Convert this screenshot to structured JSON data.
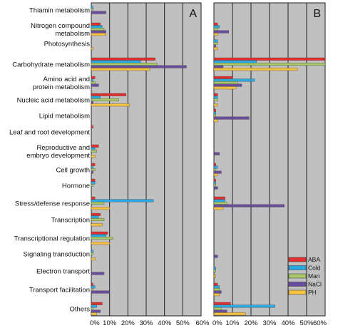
{
  "chart_data": {
    "type": "bar",
    "orientation": "horizontal",
    "categories": [
      "Thiamin metabolism",
      "Nitrogen compound metabolism",
      "Photosynthesis",
      "Carbohydrate metabolism",
      "Amino acid and protein metabolism",
      "Nucleic acid metabolism",
      "Lipid metabolism",
      "Leaf and root development",
      "Reproductive and embryo development",
      "Cell growth",
      "Hormone",
      "Stress/defense response",
      "Transcription",
      "Transcriptional regulation",
      "Signaling transduction",
      "Electron transport",
      "Transport facilitation",
      "Others"
    ],
    "category_display": [
      [
        "Thiamin metabolism"
      ],
      [
        "Nitrogen compound",
        "metabolism"
      ],
      [
        "Photosynthesis"
      ],
      [
        "Carbohydrate metabolism"
      ],
      [
        "Amino acid and",
        "protein metabolism"
      ],
      [
        "Nucleic acid metabolism"
      ],
      [
        "Lipid metabolism"
      ],
      [
        "Leaf and root development"
      ],
      [
        "Reproductive and",
        "embryo development"
      ],
      [
        "Cell growth"
      ],
      [
        "Hormone"
      ],
      [
        "Stress/defense response"
      ],
      [
        "Transcription"
      ],
      [
        "Transcriptional regulation"
      ],
      [
        "Signaling transduction"
      ],
      [
        "Electron transport"
      ],
      [
        "Transport facilitation"
      ],
      [
        "Others"
      ]
    ],
    "xlim": [
      0,
      60
    ],
    "xticks": [
      "0%",
      "10%",
      "20%",
      "30%",
      "40%",
      "50%",
      "60%"
    ],
    "grid": true,
    "legend_position": "bottom-right of panel B",
    "legend": [
      "ABA",
      "Cold",
      "Man",
      "NaCl",
      "PH"
    ],
    "colors": {
      "ABA": "#e03030",
      "Cold": "#2aa9e0",
      "Man": "#a8c86a",
      "NaCl": "#6a4c9c",
      "PH": "#f5c242"
    },
    "panel_background": "#c0c0c0",
    "panels": [
      {
        "label": "A",
        "series": [
          {
            "name": "ABA",
            "values": [
              0,
              5,
              0,
              35,
              2,
              19,
              0,
              1,
              4,
              2,
              2,
              2,
              5,
              9,
              0,
              0,
              1,
              6
            ]
          },
          {
            "name": "Cold",
            "values": [
              1,
              6,
              0,
              27,
              1,
              5,
              0,
              0,
              2,
              1,
              2,
              34,
              4,
              8,
              1,
              0,
              2,
              3
            ]
          },
          {
            "name": "Man",
            "values": [
              1,
              7,
              0,
              36,
              2,
              15,
              0,
              0,
              3,
              2,
              1,
              7,
              7,
              12,
              1,
              0,
              1,
              1
            ]
          },
          {
            "name": "NaCl",
            "values": [
              8,
              8,
              0,
              52,
              4,
              1,
              0,
              0,
              0,
              1,
              0,
              0,
              0,
              0,
              0,
              7,
              10,
              5
            ]
          },
          {
            "name": "PH",
            "values": [
              0,
              8,
              1,
              32,
              0,
              21,
              0,
              0,
              2,
              0,
              0,
              10,
              6,
              10,
              2,
              0,
              0,
              3
            ]
          }
        ]
      },
      {
        "label": "B",
        "series": [
          {
            "name": "ABA",
            "values": [
              0,
              2,
              0,
              60,
              10,
              2,
              1,
              0,
              0,
              1,
              1,
              6,
              0,
              0,
              0,
              0,
              2,
              9
            ]
          },
          {
            "name": "Cold",
            "values": [
              0,
              3,
              2,
              23,
              22,
              2,
              1,
              0,
              0,
              2,
              1,
              6,
              0,
              0,
              0,
              1,
              3,
              33
            ]
          },
          {
            "name": "Man",
            "values": [
              0,
              2,
              2,
              60,
              13,
              2,
              1,
              0,
              0,
              1,
              1,
              7,
              0,
              0,
              0,
              1,
              3,
              4
            ]
          },
          {
            "name": "NaCl",
            "values": [
              0,
              8,
              1,
              5,
              15,
              0,
              19,
              0,
              3,
              4,
              2,
              38,
              0,
              0,
              2,
              0,
              4,
              7
            ]
          },
          {
            "name": "PH",
            "values": [
              0,
              2,
              2,
              45,
              12,
              2,
              2,
              0,
              0,
              2,
              0,
              5,
              0,
              0,
              0,
              1,
              3,
              17
            ]
          }
        ]
      }
    ]
  }
}
